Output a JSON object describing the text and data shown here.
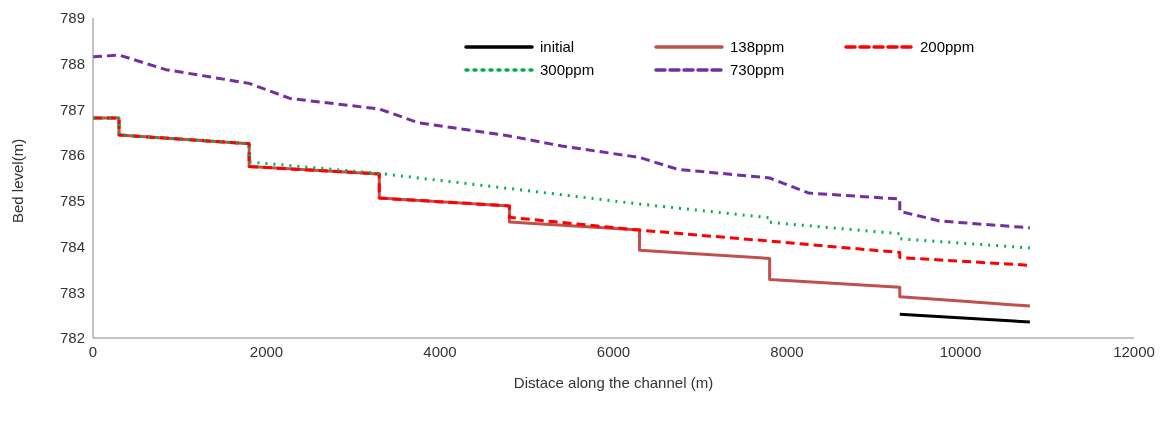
{
  "chart_data": {
    "type": "line",
    "xlabel": "Distace along the channel (m)",
    "ylabel": "Bed level(m)",
    "xlim": [
      0,
      12000
    ],
    "xticks": [
      0,
      2000,
      4000,
      6000,
      8000,
      10000,
      12000
    ],
    "ylim": [
      782,
      789
    ],
    "yticks": [
      782,
      783,
      784,
      785,
      786,
      787,
      788,
      789
    ],
    "grid": false,
    "legend": "top right",
    "marker": "none",
    "series": [
      {
        "name": "initial",
        "color": "#000000",
        "line_style": "solid",
        "x": [
          9300,
          10800
        ],
        "values": [
          782.52,
          782.35
        ]
      },
      {
        "name": "138ppm",
        "color": "#c0504d",
        "line_style": "solid",
        "x": [
          0,
          300,
          300,
          1800,
          1800,
          3300,
          3300,
          4800,
          4800,
          6300,
          6300,
          7800,
          7800,
          9300,
          9300,
          10000,
          10800
        ],
        "values": [
          786.81,
          786.81,
          786.44,
          786.25,
          785.75,
          785.59,
          785.06,
          784.89,
          784.54,
          784.36,
          783.92,
          783.74,
          783.28,
          783.11,
          782.9,
          782.81,
          782.7
        ]
      },
      {
        "name": "200ppm",
        "color": "#ff0000",
        "line_style": "dashed",
        "x": [
          0,
          300,
          300,
          1800,
          1800,
          3300,
          3300,
          4800,
          4800,
          6300,
          7800,
          9300,
          9300,
          10800
        ],
        "values": [
          786.81,
          786.81,
          786.44,
          786.25,
          785.75,
          785.59,
          785.06,
          784.89,
          784.64,
          784.36,
          784.12,
          783.87,
          783.76,
          783.59
        ]
      },
      {
        "name": "300ppm",
        "color": "#00b050",
        "line_style": "dotted",
        "x": [
          0,
          300,
          300,
          1800,
          1800,
          3300,
          4800,
          6300,
          7800,
          7800,
          9300,
          9300,
          10800
        ],
        "values": [
          786.81,
          786.81,
          786.44,
          786.25,
          785.85,
          785.6,
          785.27,
          784.93,
          784.63,
          784.53,
          784.28,
          784.17,
          783.97
        ]
      },
      {
        "name": "730ppm",
        "color": "#7030a0",
        "line_style": "dashed",
        "x": [
          0,
          300,
          840,
          1800,
          2270,
          3300,
          3750,
          4800,
          5400,
          6300,
          6740,
          7800,
          8250,
          9300,
          9300,
          9760,
          10800
        ],
        "values": [
          788.15,
          788.19,
          787.87,
          787.57,
          787.24,
          787.01,
          786.71,
          786.42,
          786.2,
          785.95,
          785.69,
          785.5,
          785.17,
          785.04,
          784.77,
          784.56,
          784.41
        ]
      }
    ]
  }
}
